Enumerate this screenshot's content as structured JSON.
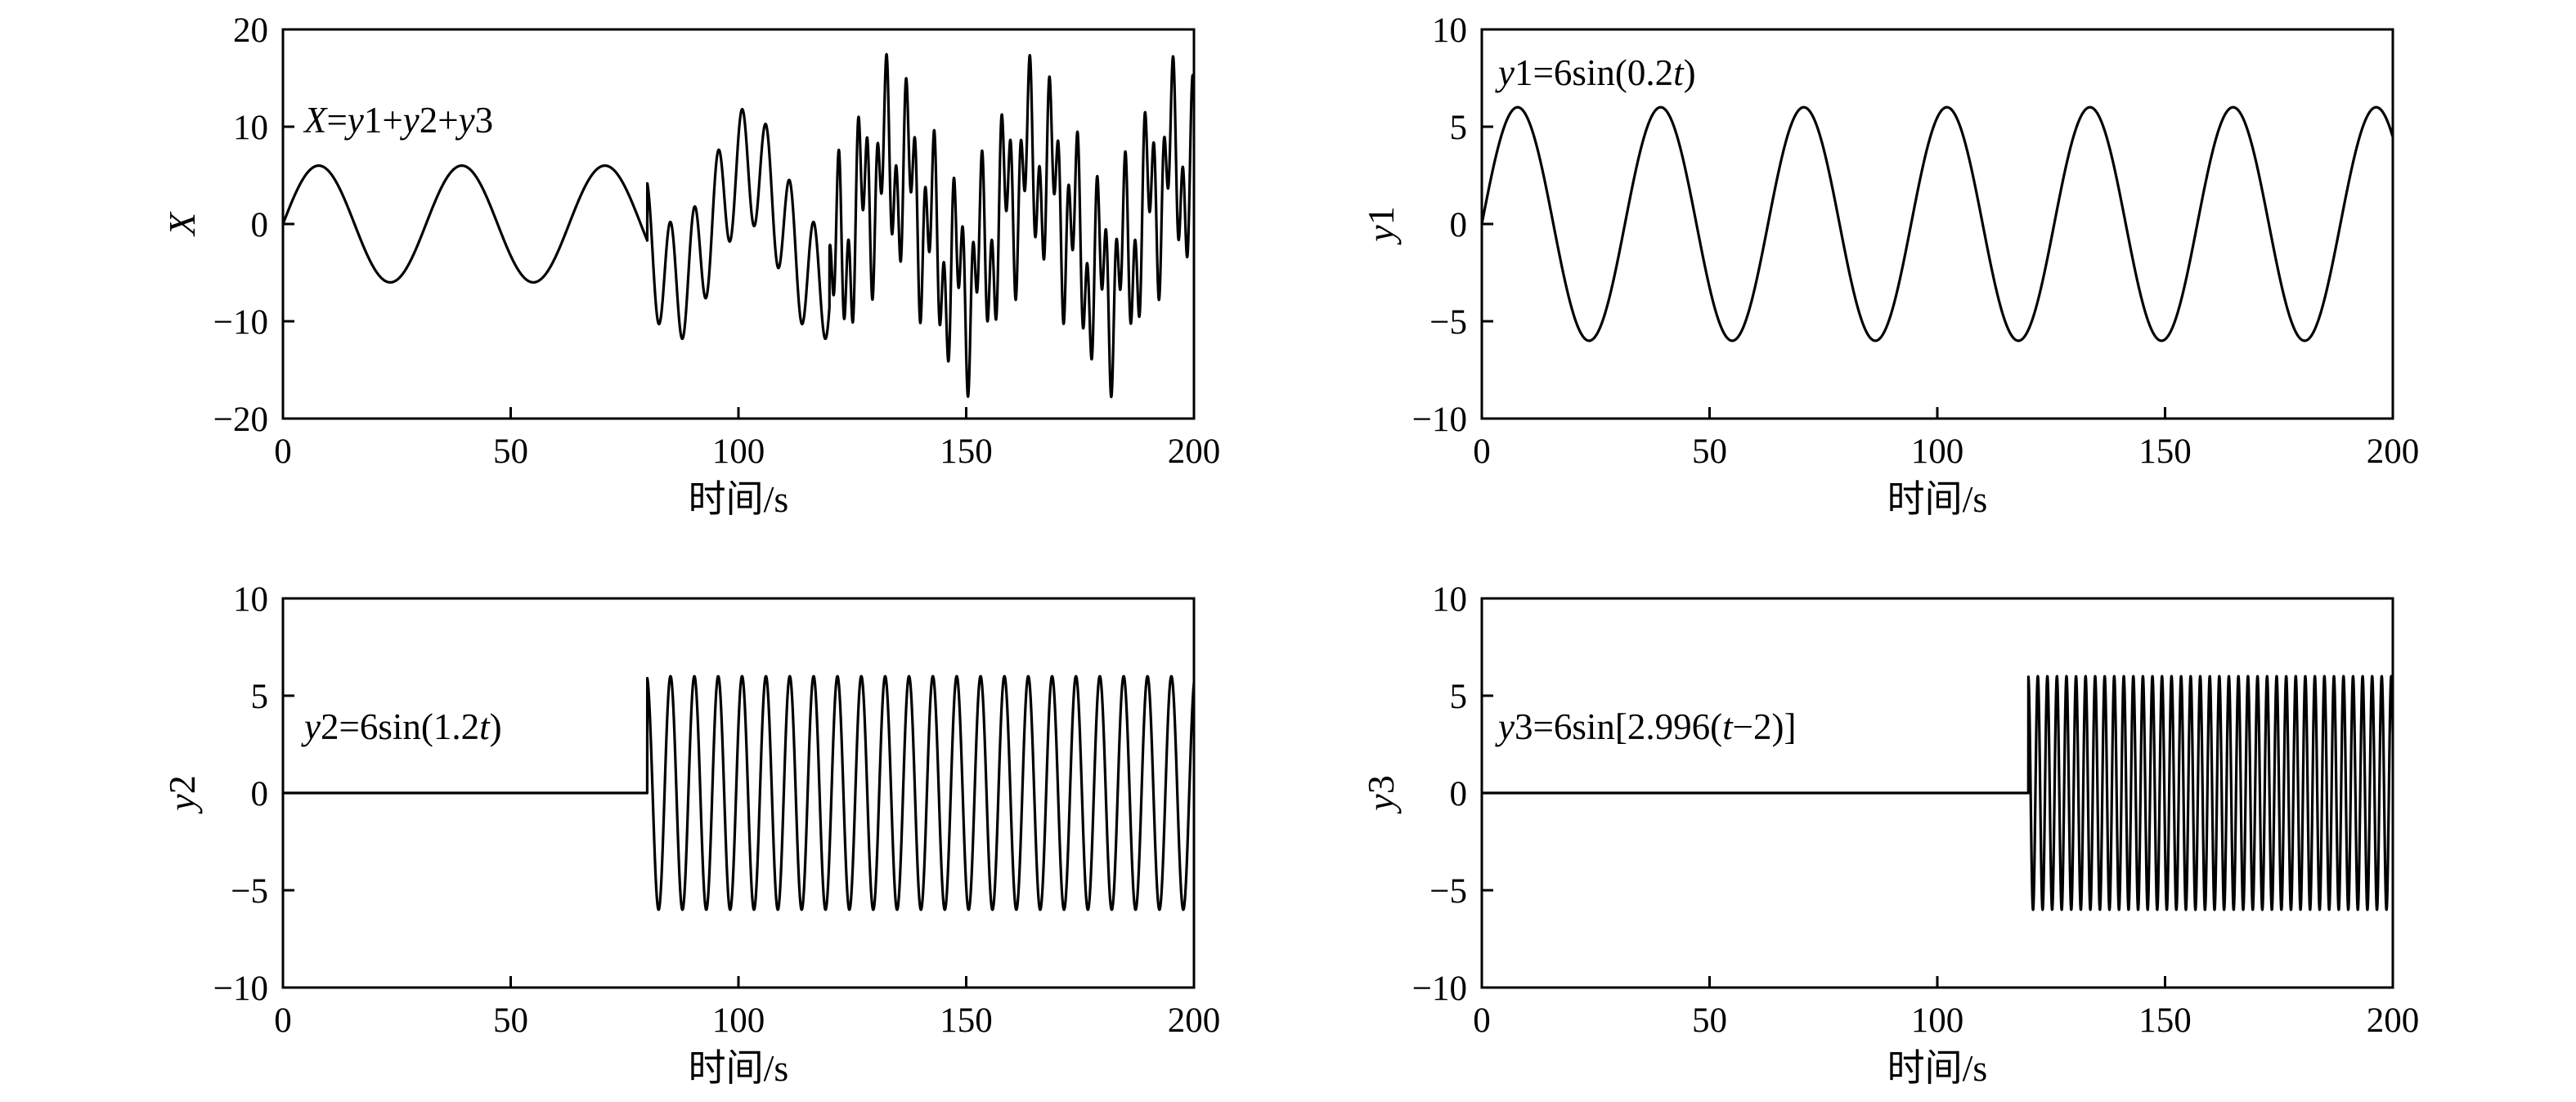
{
  "chart_data": [
    {
      "type": "line",
      "xlabel": "时间/s",
      "ylabel": "X",
      "ylabel_italic": true,
      "xlim": [
        0,
        200
      ],
      "ylim": [
        -20,
        20
      ],
      "xticks": [
        0,
        50,
        100,
        150,
        200
      ],
      "yticks": [
        -20,
        -10,
        0,
        10,
        20
      ],
      "xtick_labels": [
        "0",
        "50",
        "100",
        "150",
        "200"
      ],
      "ytick_labels": [
        "−20",
        "−10",
        "0",
        "10",
        "20"
      ],
      "grid": false,
      "annotation": {
        "text": "X=y1+y2+y3",
        "parts": [
          {
            "t": "X",
            "i": true
          },
          {
            "t": "=",
            "i": false
          },
          {
            "t": "y",
            "i": true
          },
          {
            "t": "1+",
            "i": false
          },
          {
            "t": "y",
            "i": true
          },
          {
            "t": "2+",
            "i": false
          },
          {
            "t": "y",
            "i": true
          },
          {
            "t": "3",
            "i": false
          }
        ]
      },
      "series": [
        {
          "formula": "y1+y2+y3",
          "components": [
            {
              "amplitude": 6,
              "omega": 0.2,
              "phase": 0,
              "t_start": 0
            },
            {
              "amplitude": 6,
              "omega": 1.2,
              "phase": 0,
              "t_start": 80
            },
            {
              "amplitude": 6,
              "omega": 2.996,
              "phase": -2,
              "t_start": 120
            }
          ],
          "samples": 8000
        }
      ]
    },
    {
      "type": "line",
      "xlabel": "时间/s",
      "ylabel": "y1",
      "ylabel_italic": false,
      "xlim": [
        0,
        200
      ],
      "ylim": [
        -10,
        10
      ],
      "xticks": [
        0,
        50,
        100,
        150,
        200
      ],
      "yticks": [
        -10,
        -5,
        0,
        5,
        10
      ],
      "xtick_labels": [
        "0",
        "50",
        "100",
        "150",
        "200"
      ],
      "ytick_labels": [
        "−10",
        "−5",
        "0",
        "5",
        "10"
      ],
      "grid": false,
      "annotation": {
        "text": "y1=6sin(0.2t)",
        "parts": [
          {
            "t": "y",
            "i": true
          },
          {
            "t": "1=6sin(0.2",
            "i": false
          },
          {
            "t": "t",
            "i": true
          },
          {
            "t": ")",
            "i": false
          }
        ]
      },
      "series": [
        {
          "formula": "6sin(0.2t)",
          "components": [
            {
              "amplitude": 6,
              "omega": 0.2,
              "phase": 0,
              "t_start": 0
            }
          ],
          "samples": 4000
        }
      ]
    },
    {
      "type": "line",
      "xlabel": "时间/s",
      "ylabel": "y2",
      "ylabel_italic": false,
      "xlim": [
        0,
        200
      ],
      "ylim": [
        -10,
        10
      ],
      "xticks": [
        0,
        50,
        100,
        150,
        200
      ],
      "yticks": [
        -10,
        -5,
        0,
        5,
        10
      ],
      "xtick_labels": [
        "0",
        "50",
        "100",
        "150",
        "200"
      ],
      "ytick_labels": [
        "−10",
        "−5",
        "0",
        "5",
        "10"
      ],
      "grid": false,
      "annotation": {
        "text": "y2=6sin(1.2t)",
        "parts": [
          {
            "t": "y",
            "i": true
          },
          {
            "t": "2=6sin(1.2",
            "i": false
          },
          {
            "t": "t",
            "i": true
          },
          {
            "t": ")",
            "i": false
          }
        ]
      },
      "series": [
        {
          "formula": "6sin(1.2t)",
          "components": [
            {
              "amplitude": 6,
              "omega": 1.2,
              "phase": 0,
              "t_start": 80
            }
          ],
          "samples": 6000
        }
      ]
    },
    {
      "type": "line",
      "xlabel": "时间/s",
      "ylabel": "y3",
      "ylabel_italic": false,
      "xlim": [
        0,
        200
      ],
      "ylim": [
        -10,
        10
      ],
      "xticks": [
        0,
        50,
        100,
        150,
        200
      ],
      "yticks": [
        -10,
        -5,
        0,
        5,
        10
      ],
      "xtick_labels": [
        "0",
        "50",
        "100",
        "150",
        "200"
      ],
      "ytick_labels": [
        "−10",
        "−5",
        "0",
        "5",
        "10"
      ],
      "grid": false,
      "annotation": {
        "text": "y3=6sin[2.996(t−2)]",
        "parts": [
          {
            "t": "y",
            "i": true
          },
          {
            "t": "3=6sin[2.996(",
            "i": false
          },
          {
            "t": "t",
            "i": true
          },
          {
            "t": "−2)]",
            "i": false
          }
        ]
      },
      "series": [
        {
          "formula": "6sin[2.996(t−2)]",
          "components": [
            {
              "amplitude": 6,
              "omega": 2.996,
              "phase": -2,
              "t_start": 120
            }
          ],
          "samples": 9000
        }
      ]
    }
  ]
}
